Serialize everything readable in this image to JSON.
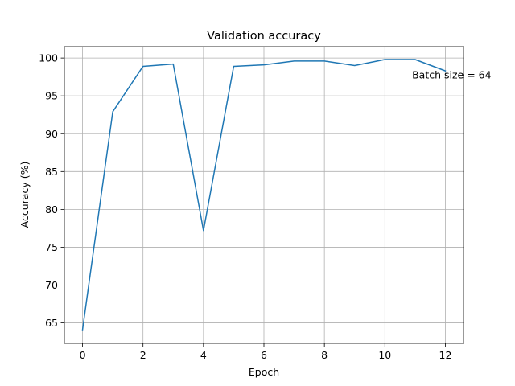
{
  "chart_data": {
    "type": "line",
    "title": "Validation accuracy",
    "xlabel": "Epoch",
    "ylabel": "Accuracy (%)",
    "xlim": [
      -0.6,
      12.6
    ],
    "ylim": [
      62.3,
      101.5
    ],
    "xticks": [
      0,
      2,
      4,
      6,
      8,
      10,
      12
    ],
    "yticks": [
      65,
      70,
      75,
      80,
      85,
      90,
      95,
      100
    ],
    "grid": true,
    "series": [
      {
        "color": "#1f77b4",
        "x": [
          0,
          1,
          2,
          3,
          4,
          5,
          6,
          7,
          8,
          9,
          10,
          11,
          12
        ],
        "y": [
          64.1,
          92.9,
          98.9,
          99.2,
          77.2,
          98.9,
          99.1,
          99.6,
          99.6,
          99.0,
          99.8,
          99.8,
          98.3
        ]
      }
    ],
    "annotations": [
      {
        "text": "Batch size = 64",
        "x": 10.9,
        "y": 97.8
      }
    ]
  }
}
